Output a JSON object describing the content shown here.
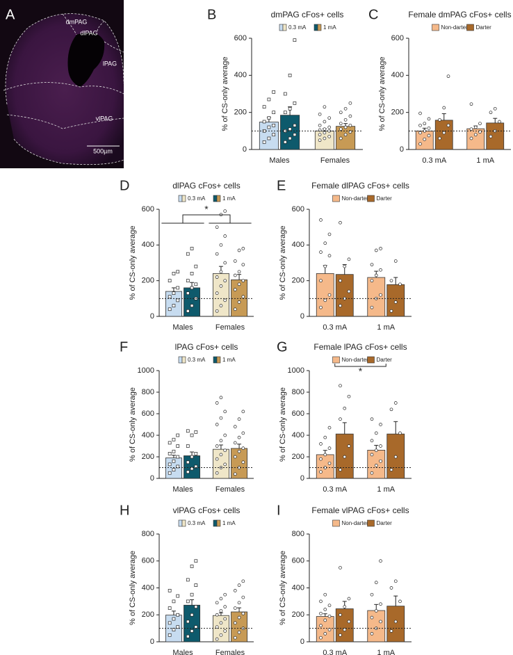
{
  "image_panel": {
    "label": "A",
    "regions": [
      "dmPAG",
      "dlPAG",
      "lPAG",
      "vlPAG"
    ],
    "scale_bar": "500µm"
  },
  "chart_data": [
    {
      "type": "bar",
      "label": "B",
      "title": "dmPAG cFos+ cells",
      "y_label": "% of CS-only average",
      "categories": [
        "Males",
        "Females"
      ],
      "markers": [
        "square",
        "circle"
      ],
      "ylim": [
        0,
        600
      ],
      "yticks": [
        0,
        200,
        400,
        600
      ],
      "reference_line": 100,
      "series": [
        {
          "name": "0.3 mA",
          "colors": [
            "#c7dcf0",
            "#efe6c8"
          ],
          "values": [
            148,
            100
          ],
          "errors": [
            25,
            12
          ],
          "points": [
            [
              40,
              60,
              80,
              100,
              120,
              130,
              150,
              170,
              200,
              230,
              270,
              310
            ],
            [
              50,
              60,
              70,
              80,
              90,
              100,
              105,
              110,
              120,
              130,
              150,
              170,
              190,
              230
            ]
          ]
        },
        {
          "name": "1 mA",
          "colors": [
            "#0e5a6c",
            "#c79a55"
          ],
          "values": [
            185,
            125
          ],
          "errors": [
            45,
            15
          ],
          "points": [
            [
              40,
              60,
              80,
              100,
              110,
              130,
              200,
              220,
              250,
              300,
              400,
              590
            ],
            [
              60,
              80,
              95,
              110,
              120,
              130,
              140,
              160,
              180,
              200,
              220,
              250
            ]
          ]
        }
      ]
    },
    {
      "type": "bar",
      "label": "C",
      "title": "Female dmPAG cFos+ cells",
      "y_label": "% of CS-only average",
      "categories": [
        "0.3 mA",
        "1 mA"
      ],
      "markers": [
        "circle",
        "circle"
      ],
      "ylim": [
        0,
        600
      ],
      "yticks": [
        0,
        200,
        400,
        600
      ],
      "reference_line": 100,
      "series": [
        {
          "name": "Non-darter",
          "colors": [
            "#f5b98a",
            "#f5b98a"
          ],
          "values": [
            100,
            112
          ],
          "errors": [
            15,
            15
          ],
          "points": [
            [
              30,
              55,
              75,
              90,
              100,
              115,
              130,
              140,
              165,
              195
            ],
            [
              60,
              80,
              95,
              110,
              120,
              140,
              245
            ]
          ]
        },
        {
          "name": "Darter",
          "colors": [
            "#a8692a",
            "#a8692a"
          ],
          "values": [
            158,
            143
          ],
          "errors": [
            35,
            25
          ],
          "points": [
            [
              60,
              90,
              130,
              160,
              225,
              395
            ],
            [
              70,
              100,
              150,
              200,
              220
            ]
          ]
        }
      ]
    },
    {
      "type": "bar",
      "label": "D",
      "title": "dlPAG cFos+ cells",
      "y_label": "% of CS-only average",
      "categories": [
        "Males",
        "Females"
      ],
      "markers": [
        "square",
        "circle"
      ],
      "ylim": [
        0,
        600
      ],
      "yticks": [
        0,
        200,
        400,
        600
      ],
      "reference_line": 100,
      "significance": "*",
      "series": [
        {
          "name": "0.3 mA",
          "colors": [
            "#c7dcf0",
            "#efe6c8"
          ],
          "values": [
            140,
            240
          ],
          "errors": [
            20,
            40
          ],
          "points": [
            [
              40,
              60,
              90,
              110,
              130,
              160,
              200,
              240,
              250
            ],
            [
              30,
              60,
              90,
              130,
              170,
              200,
              220,
              250,
              300,
              350,
              400,
              450,
              500,
              570,
              590
            ]
          ]
        },
        {
          "name": "1 mA",
          "colors": [
            "#0e5a6c",
            "#c79a55"
          ],
          "values": [
            160,
            205
          ],
          "errors": [
            30,
            30
          ],
          "points": [
            [
              30,
              60,
              100,
              130,
              160,
              180,
              200,
              240,
              280,
              350,
              380
            ],
            [
              40,
              80,
              110,
              150,
              180,
              200,
              230,
              250,
              290,
              310,
              370,
              380
            ]
          ]
        }
      ]
    },
    {
      "type": "bar",
      "label": "E",
      "title": "Female dlPAG cFos+ cells",
      "y_label": "% of CS-only average",
      "categories": [
        "0.3 mA",
        "1 mA"
      ],
      "markers": [
        "circle",
        "circle"
      ],
      "ylim": [
        0,
        600
      ],
      "yticks": [
        0,
        200,
        400,
        600
      ],
      "reference_line": 100,
      "series": [
        {
          "name": "Non-darter",
          "colors": [
            "#f5b98a",
            "#f5b98a"
          ],
          "values": [
            240,
            218
          ],
          "errors": [
            45,
            35
          ],
          "points": [
            [
              50,
              90,
              120,
              200,
              280,
              340,
              360,
              410,
              460,
              540
            ],
            [
              50,
              100,
              120,
              200,
              230,
              260,
              290,
              370,
              380
            ]
          ]
        },
        {
          "name": "Darter",
          "colors": [
            "#a8692a",
            "#a8692a"
          ],
          "values": [
            235,
            178
          ],
          "errors": [
            55,
            40
          ],
          "points": [
            [
              60,
              100,
              140,
              200,
              280,
              320,
              525
            ],
            [
              30,
              80,
              180,
              200,
              310
            ]
          ]
        }
      ]
    },
    {
      "type": "bar",
      "label": "F",
      "title": "lPAG cFos+ cells",
      "y_label": "% of CS-only average",
      "categories": [
        "Males",
        "Females"
      ],
      "markers": [
        "square",
        "circle"
      ],
      "ylim": [
        0,
        1000
      ],
      "yticks": [
        0,
        200,
        400,
        600,
        800,
        1000
      ],
      "reference_line": 100,
      "series": [
        {
          "name": "0.3 mA",
          "colors": [
            "#c7dcf0",
            "#efe6c8"
          ],
          "values": [
            190,
            270
          ],
          "errors": [
            25,
            40
          ],
          "points": [
            [
              50,
              80,
              110,
              130,
              160,
              200,
              230,
              250,
              300,
              330,
              360,
              400
            ],
            [
              50,
              100,
              130,
              180,
              220,
              260,
              300,
              350,
              400,
              500,
              560,
              620,
              700,
              750
            ]
          ]
        },
        {
          "name": "1 mA",
          "colors": [
            "#0e5a6c",
            "#c79a55"
          ],
          "values": [
            210,
            278
          ],
          "errors": [
            35,
            40
          ],
          "points": [
            [
              60,
              90,
              110,
              150,
              200,
              230,
              300,
              400,
              430,
              440
            ],
            [
              40,
              100,
              150,
              200,
              250,
              280,
              330,
              380,
              420,
              480,
              550,
              620
            ]
          ]
        }
      ]
    },
    {
      "type": "bar",
      "label": "G",
      "title": "Female lPAG cFos+ cells",
      "y_label": "% of CS-only average",
      "categories": [
        "0.3 mA",
        "1 mA"
      ],
      "markers": [
        "circle",
        "circle"
      ],
      "ylim": [
        0,
        1000
      ],
      "yticks": [
        0,
        200,
        400,
        600,
        800,
        1000
      ],
      "reference_line": 100,
      "significance": "*",
      "series": [
        {
          "name": "Non-darter",
          "colors": [
            "#f5b98a",
            "#f5b98a"
          ],
          "values": [
            220,
            262
          ],
          "errors": [
            40,
            45
          ],
          "points": [
            [
              60,
              100,
              140,
              180,
              220,
              280,
              320,
              380,
              470
            ],
            [
              50,
              120,
              160,
              220,
              260,
              300,
              350,
              420,
              500,
              550
            ]
          ]
        },
        {
          "name": "Darter",
          "colors": [
            "#a8692a",
            "#a8692a"
          ],
          "values": [
            412,
            412
          ],
          "errors": [
            105,
            115
          ],
          "points": [
            [
              80,
              200,
              300,
              550,
              650,
              760,
              860
            ],
            [
              80,
              200,
              420,
              640,
              700
            ]
          ]
        }
      ]
    },
    {
      "type": "bar",
      "label": "H",
      "title": "vlPAG cFos+ cells",
      "y_label": "% of CS-only average",
      "categories": [
        "Males",
        "Females"
      ],
      "markers": [
        "square",
        "circle"
      ],
      "ylim": [
        0,
        800
      ],
      "yticks": [
        0,
        200,
        400,
        600,
        800
      ],
      "reference_line": 100,
      "series": [
        {
          "name": "0.3 mA",
          "colors": [
            "#c7dcf0",
            "#efe6c8"
          ],
          "values": [
            198,
            195
          ],
          "errors": [
            30,
            20
          ],
          "points": [
            [
              50,
              90,
              110,
              140,
              170,
              200,
              250,
              300,
              340,
              380
            ],
            [
              20,
              50,
              80,
              110,
              140,
              170,
              200,
              230,
              260,
              290,
              320,
              350
            ]
          ]
        },
        {
          "name": "1 mA",
          "colors": [
            "#0e5a6c",
            "#c79a55"
          ],
          "values": [
            272,
            222
          ],
          "errors": [
            40,
            30
          ],
          "points": [
            [
              40,
              80,
              110,
              150,
              200,
              260,
              300,
              350,
              420,
              460,
              560,
              600
            ],
            [
              30,
              70,
              100,
              140,
              180,
              210,
              250,
              290,
              330,
              380,
              420,
              450
            ]
          ]
        }
      ]
    },
    {
      "type": "bar",
      "label": "I",
      "title": "Female vlPAG cFos+ cells",
      "y_label": "% of CS-only average",
      "categories": [
        "0.3 mA",
        "1 mA"
      ],
      "markers": [
        "circle",
        "circle"
      ],
      "ylim": [
        0,
        800
      ],
      "yticks": [
        0,
        200,
        400,
        600,
        800
      ],
      "reference_line": 100,
      "series": [
        {
          "name": "Non-darter",
          "colors": [
            "#f5b98a",
            "#f5b98a"
          ],
          "values": [
            188,
            232
          ],
          "errors": [
            20,
            45
          ],
          "points": [
            [
              30,
              60,
              90,
              120,
              160,
              190,
              210,
              240,
              270,
              300,
              350
            ],
            [
              60,
              100,
              150,
              180,
              230,
              280,
              350,
              440,
              600
            ]
          ]
        },
        {
          "name": "Darter",
          "colors": [
            "#a8692a",
            "#a8692a"
          ],
          "values": [
            245,
            265
          ],
          "errors": [
            55,
            75
          ],
          "points": [
            [
              50,
              90,
              150,
              200,
              260,
              320,
              550
            ],
            [
              80,
              150,
              300,
              400,
              450
            ]
          ]
        }
      ]
    }
  ]
}
